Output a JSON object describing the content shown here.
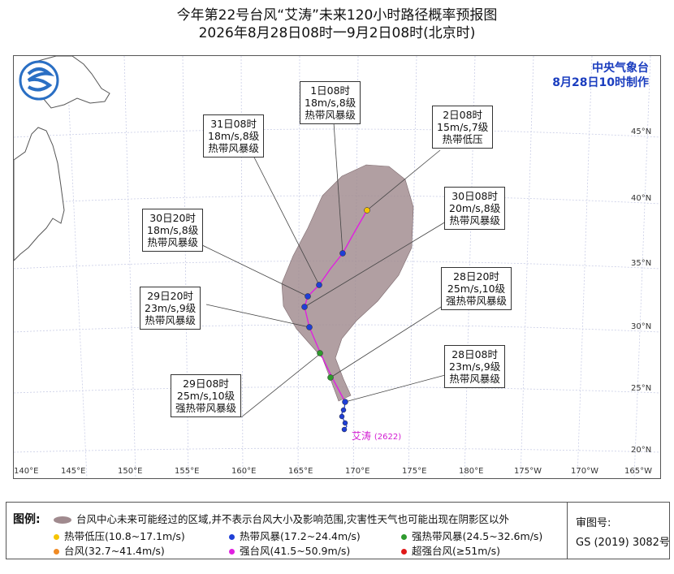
{
  "header": {
    "title": "今年第22号台风“艾涛”未来120小时路径概率预报图",
    "subtitle": "2026年8月28日08时一9月2日08时(北京时)"
  },
  "issuer": {
    "name": "中央气象台",
    "time": "8月28日10时制作"
  },
  "typhoon_label": "艾涛",
  "typhoon_code": "(2622)",
  "x_axis_labels": [
    "140°E",
    "145°E",
    "150°E",
    "155°E",
    "160°E",
    "165°E",
    "170°E",
    "175°E",
    "180°E",
    "175°W",
    "170°W",
    "165°W"
  ],
  "y_axis_labels": [
    "20°N",
    "25°N",
    "30°N",
    "35°N",
    "40°N",
    "45°N"
  ],
  "forecast_points": [
    {
      "time": "28日08时",
      "wind": "23m/s,9级",
      "level": "热带风暴级"
    },
    {
      "time": "28日20时",
      "wind": "25m/s,10级",
      "level": "强热带风暴级"
    },
    {
      "time": "29日08时",
      "wind": "25m/s,10级",
      "level": "强热带风暴级"
    },
    {
      "time": "29日20时",
      "wind": "23m/s,9级",
      "level": "热带风暴级"
    },
    {
      "time": "30日08时",
      "wind": "20m/s,8级",
      "level": "热带风暴级"
    },
    {
      "time": "30日20时",
      "wind": "18m/s,8级",
      "level": "热带风暴级"
    },
    {
      "time": "31日08时",
      "wind": "18m/s,8级",
      "level": "热带风暴级"
    },
    {
      "time": "1日08时",
      "wind": "18m/s,8级",
      "level": "热带风暴级"
    },
    {
      "time": "2日08时",
      "wind": "15m/s,7级",
      "level": "热带低压"
    }
  ],
  "legend": {
    "title": "图例:",
    "cone_text": "台风中心未来可能经过的区域,并不表示台风大小及影响范围,灾害性天气也可能出现在阴影区以外",
    "items": [
      {
        "label": "热带低压(10.8~17.1m/s)",
        "color": "#f5c400"
      },
      {
        "label": "热带风暴(17.2~24.4m/s)",
        "color": "#1f3fd6"
      },
      {
        "label": "强热带风暴(24.5~32.6m/s)",
        "color": "#2e9a2e"
      },
      {
        "label": "台风(32.7~41.4m/s)",
        "color": "#f08a24"
      },
      {
        "label": "强台风(41.5~50.9m/s)",
        "color": "#e020e0"
      },
      {
        "label": "超强台风(≥51m/s)",
        "color": "#e01818"
      }
    ],
    "cone_color": "#a08a8e"
  },
  "review": {
    "label": "审图号:",
    "code": "GS (2019) 3082号"
  }
}
